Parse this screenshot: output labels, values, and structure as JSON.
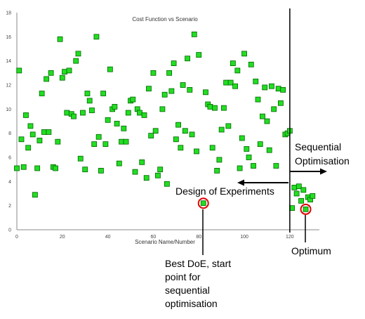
{
  "chart_data": {
    "type": "scatter",
    "title": "Cost Function vs Scenario",
    "xlabel": "Scenario Name/Number",
    "ylabel": "",
    "xlim": [
      0,
      133
    ],
    "ylim": [
      0,
      18
    ],
    "x_ticks": [
      0,
      20,
      40,
      60,
      80,
      100,
      120
    ],
    "y_ticks": [
      0,
      2,
      4,
      6,
      8,
      10,
      12,
      14,
      16,
      18
    ],
    "grid": false,
    "colors": {
      "point_fill": "#22dd22",
      "point_stroke": "#006600",
      "highlight": "#e00000"
    },
    "series": [
      {
        "values": [
          [
            0,
            5.1
          ],
          [
            1,
            13.2
          ],
          [
            2,
            7.5
          ],
          [
            3,
            5.2
          ],
          [
            4,
            9.5
          ],
          [
            5,
            6.8
          ],
          [
            6,
            8.6
          ],
          [
            7,
            7.9
          ],
          [
            8,
            2.9
          ],
          [
            9,
            5.1
          ],
          [
            10,
            7.4
          ],
          [
            11,
            11.3
          ],
          [
            12,
            8.1
          ],
          [
            13,
            12.5
          ],
          [
            14,
            8.1
          ],
          [
            15,
            13.0
          ],
          [
            16,
            5.2
          ],
          [
            17,
            5.1
          ],
          [
            18,
            7.3
          ],
          [
            19,
            15.8
          ],
          [
            20,
            12.6
          ],
          [
            21,
            13.1
          ],
          [
            22,
            9.7
          ],
          [
            23,
            13.2
          ],
          [
            24,
            9.6
          ],
          [
            25,
            9.4
          ],
          [
            26,
            14.0
          ],
          [
            27,
            14.6
          ],
          [
            28,
            5.9
          ],
          [
            29,
            9.7
          ],
          [
            30,
            5.0
          ],
          [
            31,
            11.3
          ],
          [
            32,
            10.7
          ],
          [
            33,
            9.9
          ],
          [
            34,
            7.1
          ],
          [
            35,
            16.0
          ],
          [
            36,
            7.7
          ],
          [
            37,
            4.9
          ],
          [
            38,
            11.3
          ],
          [
            39,
            7.1
          ],
          [
            40,
            9.1
          ],
          [
            41,
            13.3
          ],
          [
            42,
            10.0
          ],
          [
            43,
            10.2
          ],
          [
            44,
            8.8
          ],
          [
            45,
            5.5
          ],
          [
            46,
            7.3
          ],
          [
            47,
            8.4
          ],
          [
            48,
            7.3
          ],
          [
            49,
            9.7
          ],
          [
            50,
            10.7
          ],
          [
            51,
            10.8
          ],
          [
            52,
            4.8
          ],
          [
            53,
            10.0
          ],
          [
            54,
            9.7
          ],
          [
            55,
            5.6
          ],
          [
            56,
            9.5
          ],
          [
            57,
            4.3
          ],
          [
            58,
            11.7
          ],
          [
            59,
            7.8
          ],
          [
            60,
            13.0
          ],
          [
            61,
            8.2
          ],
          [
            62,
            4.5
          ],
          [
            63,
            5.0
          ],
          [
            64,
            10.0
          ],
          [
            65,
            11.2
          ],
          [
            66,
            3.8
          ],
          [
            67,
            13.0
          ],
          [
            68,
            11.5
          ],
          [
            69,
            13.8
          ],
          [
            70,
            7.5
          ],
          [
            71,
            8.7
          ],
          [
            72,
            6.8
          ],
          [
            73,
            12.0
          ],
          [
            74,
            8.2
          ],
          [
            75,
            14.2
          ],
          [
            76,
            11.6
          ],
          [
            77,
            7.9
          ],
          [
            78,
            16.2
          ],
          [
            79,
            6.5
          ],
          [
            80,
            14.5
          ],
          [
            82,
            2.2
          ],
          [
            83,
            11.4
          ],
          [
            84,
            10.4
          ],
          [
            85,
            10.2
          ],
          [
            86,
            6.8
          ],
          [
            87,
            10.1
          ],
          [
            88,
            4.9
          ],
          [
            89,
            5.8
          ],
          [
            90,
            8.3
          ],
          [
            91,
            10.1
          ],
          [
            92,
            12.2
          ],
          [
            93,
            8.6
          ],
          [
            94,
            12.2
          ],
          [
            95,
            13.8
          ],
          [
            96,
            11.9
          ],
          [
            97,
            13.2
          ],
          [
            98,
            5.1
          ],
          [
            99,
            7.6
          ],
          [
            100,
            14.6
          ],
          [
            101,
            6.7
          ],
          [
            102,
            6.0
          ],
          [
            103,
            13.7
          ],
          [
            104,
            5.3
          ],
          [
            105,
            12.3
          ],
          [
            106,
            10.8
          ],
          [
            107,
            7.1
          ],
          [
            108,
            9.4
          ],
          [
            109,
            11.8
          ],
          [
            110,
            9.0
          ],
          [
            111,
            6.6
          ],
          [
            112,
            11.9
          ],
          [
            113,
            10.0
          ],
          [
            114,
            5.3
          ],
          [
            115,
            11.7
          ],
          [
            116,
            10.5
          ],
          [
            117,
            11.6
          ],
          [
            118,
            7.9
          ],
          [
            119,
            8.0
          ],
          [
            120,
            8.2
          ],
          [
            121,
            1.8
          ],
          [
            122,
            3.5
          ],
          [
            123,
            3.0
          ],
          [
            124,
            3.6
          ],
          [
            125,
            2.4
          ],
          [
            126,
            3.3
          ],
          [
            127,
            1.7
          ],
          [
            128,
            2.7
          ],
          [
            129,
            2.5
          ],
          [
            130,
            2.8
          ]
        ]
      }
    ],
    "highlighted_points": [
      [
        82,
        2.2
      ],
      [
        127,
        1.7
      ]
    ],
    "divider_x": 120,
    "annotations": {
      "sequential_line1": "Sequential",
      "sequential_line2": "Optimisation",
      "doe_label": "Design of Experiments",
      "optimum_label": "Optimum",
      "best_doe_lines": [
        "Best DoE, start",
        "point for",
        "sequential",
        "optimisation"
      ]
    }
  }
}
